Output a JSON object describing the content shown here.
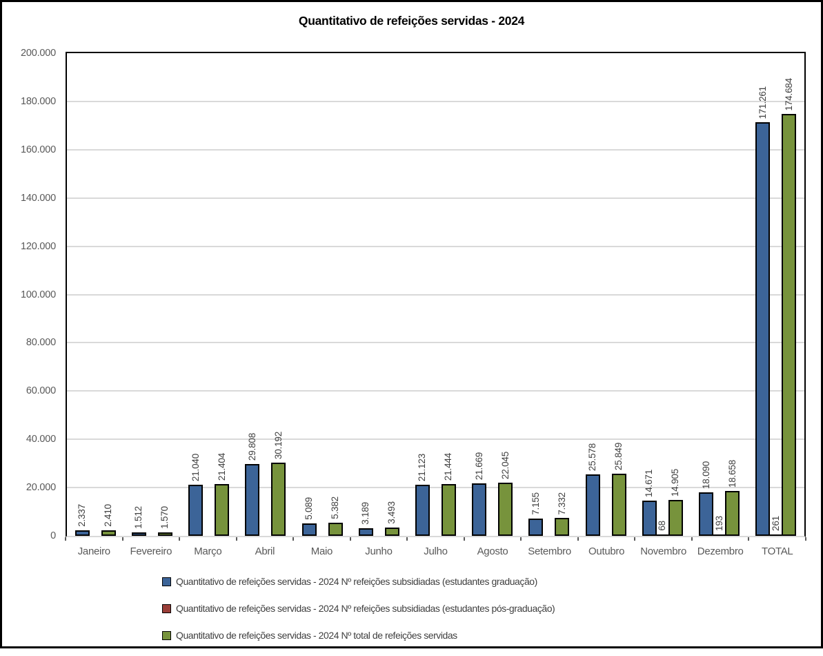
{
  "title": "Quantitativo de refeições servidas - 2024",
  "chart_data": {
    "type": "bar",
    "title": "Quantitativo de refeições servidas - 2024",
    "categories": [
      "Janeiro",
      "Fevereiro",
      "Março",
      "Abril",
      "Maio",
      "Junho",
      "Julho",
      "Agosto",
      "Setembro",
      "Outubro",
      "Novembro",
      "Dezembro",
      "TOTAL"
    ],
    "series": [
      {
        "key": "graduacao",
        "name": "Quantitativo de refeições servidas - 2024 Nº refeições subsidiadas (estudantes graduação)",
        "color": "#3C6498",
        "values": [
          2337,
          1512,
          21040,
          29808,
          5089,
          3189,
          21123,
          21669,
          7155,
          25578,
          14671,
          18090,
          171261
        ],
        "labels": [
          "2.337",
          "1.512",
          "21.040",
          "29.808",
          "5.089",
          "3.189",
          "21.123",
          "21.669",
          "7.155",
          "25.578",
          "14.671",
          "18.090",
          "171.261"
        ]
      },
      {
        "key": "pos-graduacao",
        "name": "Quantitativo de refeições servidas - 2024 Nº refeições subsidiadas (estudantes pós-graduação)",
        "color": "#9A3E38",
        "values": [
          null,
          null,
          null,
          null,
          null,
          null,
          null,
          null,
          null,
          null,
          68,
          193,
          261
        ],
        "labels": [
          null,
          null,
          null,
          null,
          null,
          null,
          null,
          null,
          null,
          null,
          "68",
          "193",
          "261"
        ]
      },
      {
        "key": "total",
        "name": "Quantitativo de refeições servidas - 2024 Nº total de refeições servidas",
        "color": "#77933C",
        "values": [
          2410,
          1570,
          21404,
          30192,
          5382,
          3493,
          21444,
          22045,
          7332,
          25849,
          14905,
          18658,
          174684
        ],
        "labels": [
          "2.410",
          "1.570",
          "21.404",
          "30.192",
          "5.382",
          "3.493",
          "21.444",
          "22.045",
          "7.332",
          "25.849",
          "14.905",
          "18.658",
          "174.684"
        ]
      }
    ],
    "ylim": [
      0,
      200000
    ],
    "ytick_step": 20000,
    "ytick_labels": [
      "0",
      "20.000",
      "40.000",
      "60.000",
      "80.000",
      "100.000",
      "120.000",
      "140.000",
      "160.000",
      "180.000",
      "200.000"
    ],
    "grid": true,
    "legend_position": "bottom",
    "colors": {
      "grid": "#D9D9D9",
      "axis_text": "#595959",
      "data_label_text": "#404040",
      "bar_border": "#000000",
      "chart_border": "#000000"
    }
  }
}
